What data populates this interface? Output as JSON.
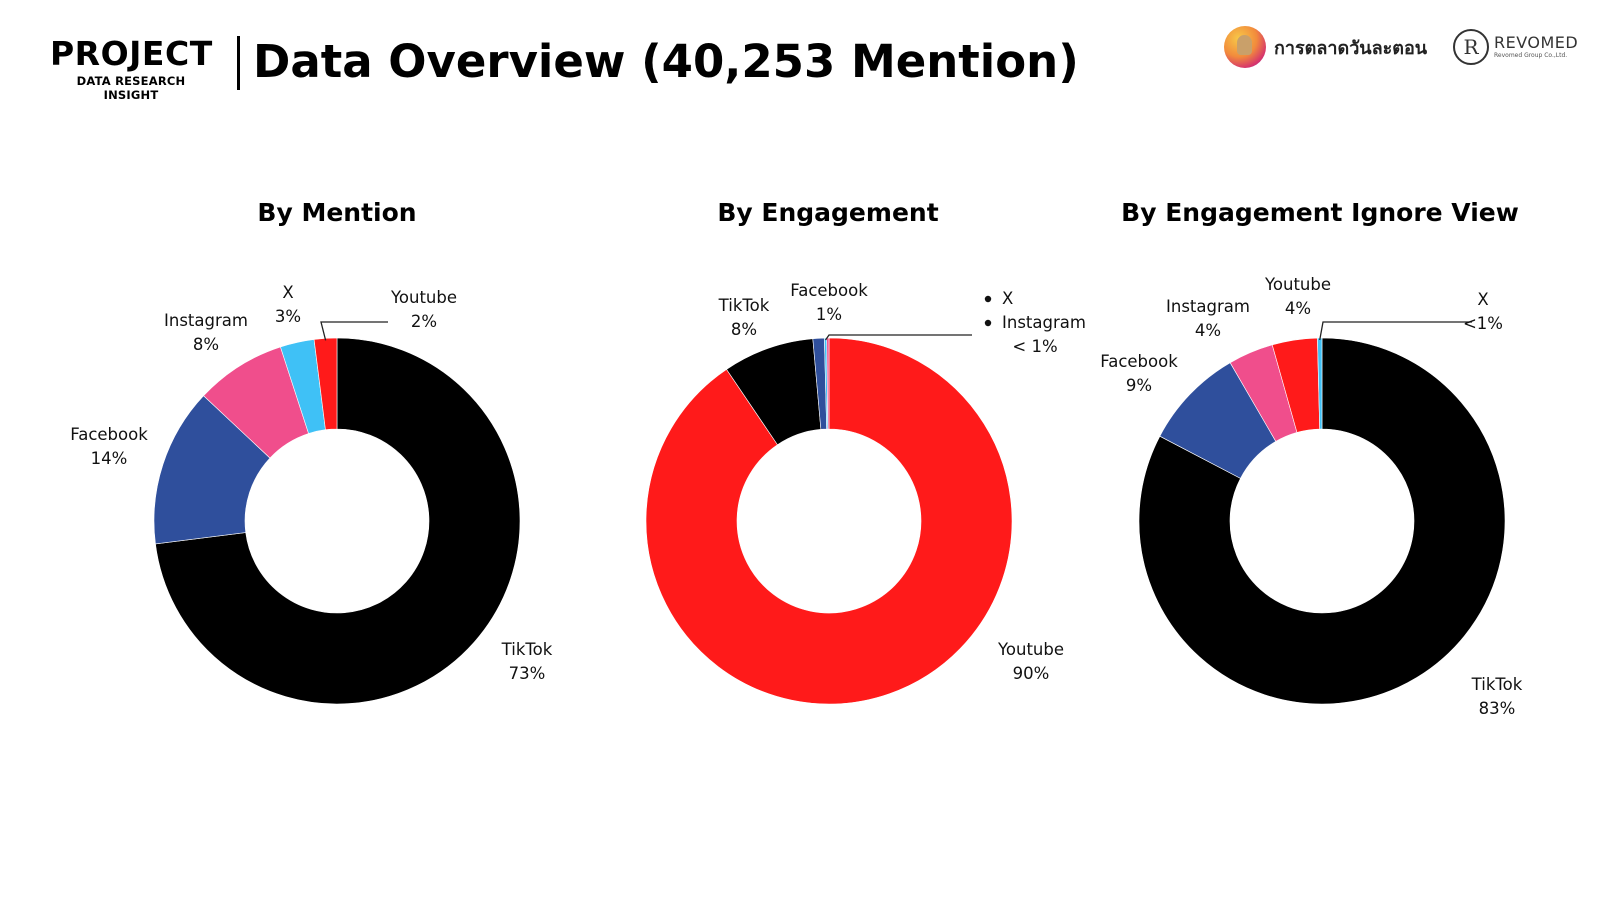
{
  "header": {
    "project": "PROJECT",
    "subtitle": "DATA RESEARCH INSIGHT",
    "title": "Data Overview (40,253 Mention)"
  },
  "brands": {
    "brand1_name": "การตลาดวันละตอน",
    "brand1_logo_icon": "cartoon-avatar-icon",
    "brand2_name": "REVOMED",
    "brand2_tagline": "Revomed Group Co.,Ltd.",
    "brand2_logo_icon": "revomed-r-monogram-icon"
  },
  "colors": {
    "TikTok": "#000000",
    "Facebook": "#2f4f9c",
    "Instagram": "#f04e8c",
    "X": "#3fc1f6",
    "Youtube": "#ff1a1a"
  },
  "chart_data": [
    {
      "type": "pie",
      "style": "donut",
      "title": "By Mention",
      "categories": [
        "TikTok",
        "Facebook",
        "Instagram",
        "X",
        "Youtube"
      ],
      "values": [
        73,
        14,
        8,
        3,
        2
      ],
      "labels": [
        {
          "name": "TikTok",
          "pct": "73%"
        },
        {
          "name": "Facebook",
          "pct": "14%"
        },
        {
          "name": "Instagram",
          "pct": "8%"
        },
        {
          "name": "X",
          "pct": "3%"
        },
        {
          "name": "Youtube",
          "pct": "2%"
        }
      ]
    },
    {
      "type": "pie",
      "style": "donut",
      "title": "By Engagement",
      "categories": [
        "Youtube",
        "TikTok",
        "Facebook",
        "X",
        "Instagram"
      ],
      "values": [
        90,
        8,
        1,
        0.2,
        0.2
      ],
      "labels": [
        {
          "name": "Youtube",
          "pct": "90%"
        },
        {
          "name": "TikTok",
          "pct": "8%"
        },
        {
          "name": "Facebook",
          "pct": "1%"
        }
      ],
      "combined_label": {
        "items": [
          "X",
          "Instagram"
        ],
        "pct": "< 1%"
      }
    },
    {
      "type": "pie",
      "style": "donut",
      "title": "By Engagement Ignore View",
      "categories": [
        "TikTok",
        "Facebook",
        "Instagram",
        "Youtube",
        "X"
      ],
      "values": [
        83,
        9,
        4,
        4,
        0.4
      ],
      "labels": [
        {
          "name": "TikTok",
          "pct": "83%"
        },
        {
          "name": "Facebook",
          "pct": "9%"
        },
        {
          "name": "Instagram",
          "pct": "4%"
        },
        {
          "name": "Youtube",
          "pct": "4%"
        },
        {
          "name": "X",
          "pct": "<1%"
        }
      ]
    }
  ]
}
